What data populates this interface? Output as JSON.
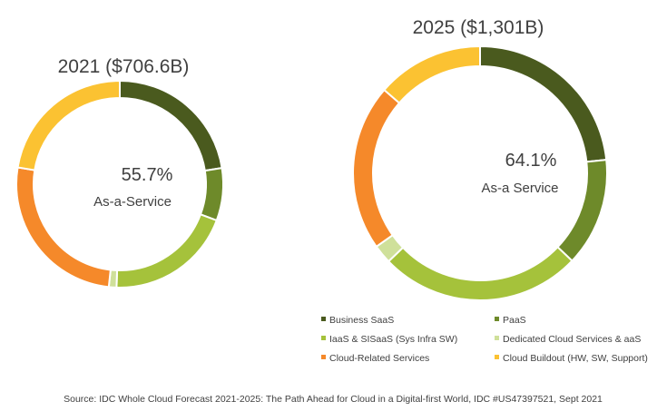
{
  "chart_data": [
    {
      "type": "pie",
      "variant": "donut",
      "title": "2021 ($706.6B)",
      "center_value": "55.7%",
      "center_label": "As-a-Service",
      "categories": [
        "Business SaaS",
        "PaaS",
        "IaaS & SISaaS (Sys Infra SW)",
        "Dedicated Cloud Services & aaS",
        "Cloud-Related Services",
        "Cloud Buildout (HW, SW, Support)"
      ],
      "values": [
        22.5,
        8.2,
        19.8,
        1.2,
        25.9,
        22.4
      ],
      "unit": "%"
    },
    {
      "type": "pie",
      "variant": "donut",
      "title": "2025 ($1,301B)",
      "center_value": "64.1%",
      "center_label": "As-a Service",
      "categories": [
        "Business SaaS",
        "PaaS",
        "IaaS & SISaaS (Sys Infra SW)",
        "Dedicated Cloud Services & aaS",
        "Cloud-Related Services",
        "Cloud Buildout (HW, SW, Support)"
      ],
      "values": [
        23.3,
        13.8,
        25.7,
        2.4,
        21.2,
        13.6
      ],
      "unit": "%"
    }
  ],
  "legend": {
    "placement": "bottom-right",
    "items": [
      {
        "label": "Business SaaS",
        "color": "#4a5a1e"
      },
      {
        "label": "PaaS",
        "color": "#6e8a2a"
      },
      {
        "label": "IaaS & SISaaS (Sys Infra SW)",
        "color": "#a5c23b"
      },
      {
        "label": "Dedicated Cloud Services & aaS",
        "color": "#cfe09a"
      },
      {
        "label": "Cloud-Related Services",
        "color": "#f5892a"
      },
      {
        "label": "Cloud Buildout (HW, SW, Support)",
        "color": "#fbc232"
      }
    ]
  },
  "source": "Source: IDC Whole Cloud Forecast 2021-2025: The Path Ahead for Cloud in a Digital-first World, IDC #US47397521, Sept 2021"
}
